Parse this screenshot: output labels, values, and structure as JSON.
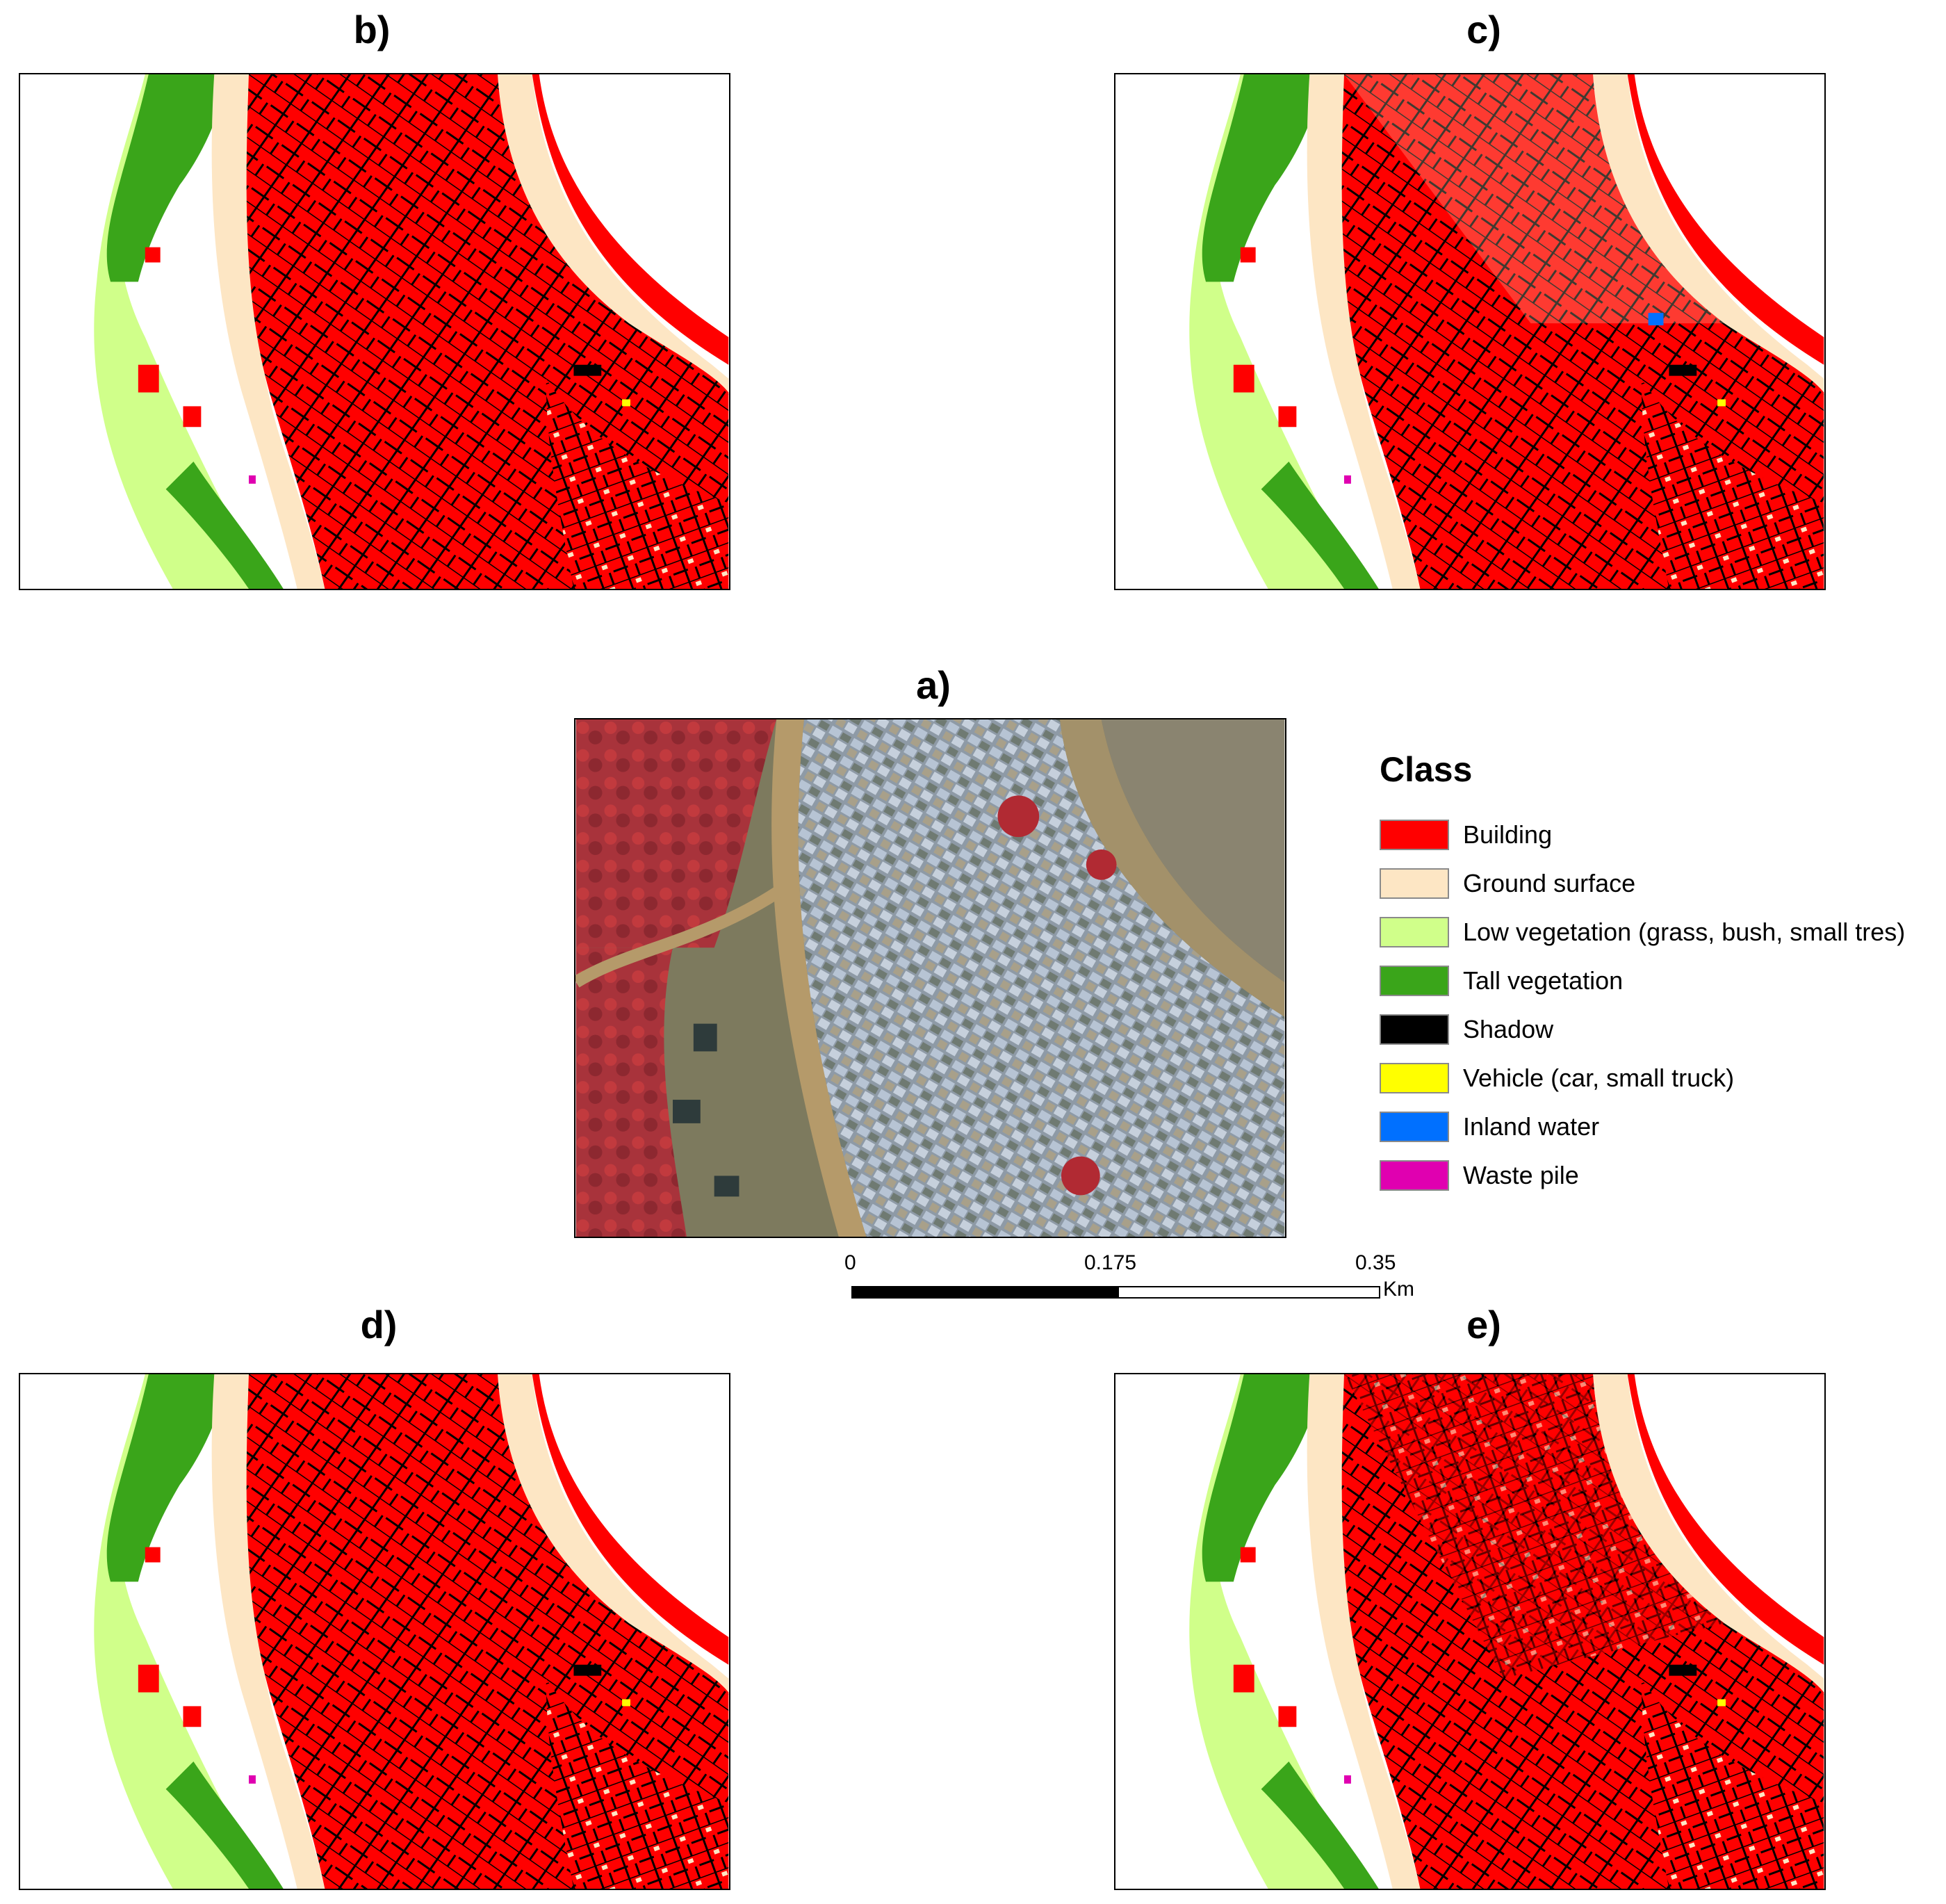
{
  "panels": {
    "a": {
      "label": "a)"
    },
    "b": {
      "label": "b)"
    },
    "c": {
      "label": "c)"
    },
    "d": {
      "label": "d)"
    },
    "e": {
      "label": "e)"
    }
  },
  "legend": {
    "title": "Class",
    "items": [
      {
        "label": "Building",
        "color": "#ff0000"
      },
      {
        "label": "Ground surface",
        "color": "#fde6c4"
      },
      {
        "label": "Low vegetation (grass, bush, small tres)",
        "color": "#d0ff8a"
      },
      {
        "label": "Tall vegetation",
        "color": "#3aa51a"
      },
      {
        "label": "Shadow",
        "color": "#000000"
      },
      {
        "label": "Vehicle (car, small truck)",
        "color": "#ffff00"
      },
      {
        "label": "Inland water",
        "color": "#0070ff"
      },
      {
        "label": "Waste pile",
        "color": "#e000b0"
      }
    ]
  },
  "scalebar": {
    "ticks": [
      "0",
      "0.175",
      "0.35"
    ],
    "unit": "Km"
  }
}
